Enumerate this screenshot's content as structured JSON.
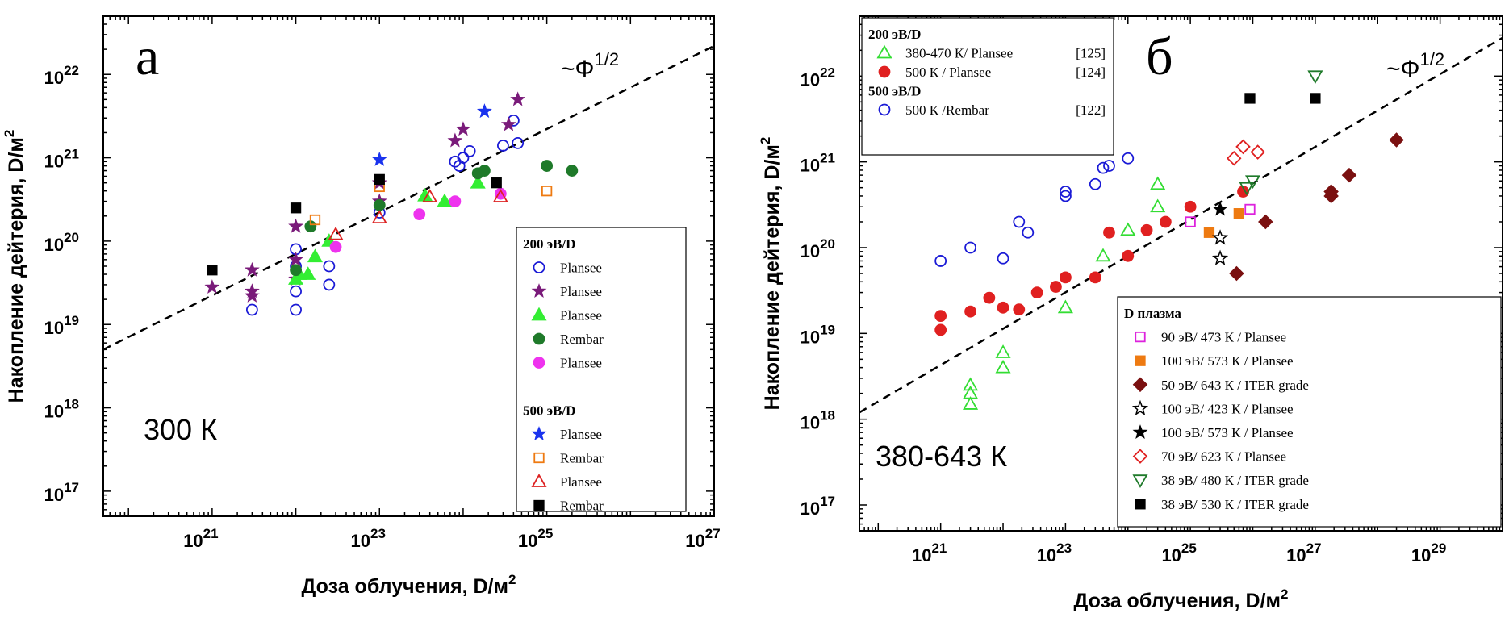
{
  "chart_data": [
    {
      "type": "scatter",
      "panel_label": "а",
      "temperature_label": "300 К",
      "trend_label": "~Φ",
      "trend_exponent": "1/2",
      "x_scale": "log",
      "y_scale": "log",
      "xlim": [
        5e+19,
        1e+27
      ],
      "ylim": [
        5e+16,
        5e+22
      ],
      "x_ticks": [
        1e+21,
        1e+23,
        1e+25,
        1e+27
      ],
      "x_tick_labels": [
        "10",
        "10",
        "10",
        "10"
      ],
      "x_tick_exponents": [
        "21",
        "23",
        "25",
        "27"
      ],
      "y_ticks": [
        1e+17,
        1e+18,
        1e+19,
        1e+20,
        1e+21,
        1e+22
      ],
      "y_tick_labels": [
        "10",
        "10",
        "10",
        "10",
        "10",
        "10"
      ],
      "y_tick_exponents": [
        "17",
        "18",
        "19",
        "20",
        "21",
        "22"
      ],
      "xlabel": "Доза облучения, D/м",
      "xlabel_sup": "2",
      "ylabel": "Накопление дейтерия, D/м",
      "ylabel_sup": "2",
      "trendline": [
        [
          5e+19,
          5e+18
        ],
        [
          1e+27,
          2.2e+22
        ]
      ],
      "legend_position": "bottom-right",
      "legend_groups": [
        {
          "title": "200 эВ/D",
          "series_indices": [
            0,
            1,
            2,
            3,
            4
          ]
        },
        {
          "title": "500 эВ/D",
          "series_indices": [
            5,
            6,
            7,
            8
          ]
        }
      ],
      "series": [
        {
          "name": "Plansee",
          "marker": "circle-open",
          "color": "#1a1ad6",
          "points": [
            [
              3e+21,
              1.5e+19
            ],
            [
              1e+22,
              1.5e+19
            ],
            [
              1e+22,
              2.5e+19
            ],
            [
              1e+22,
              5e+19
            ],
            [
              1e+22,
              8e+19
            ],
            [
              2.5e+22,
              5e+19
            ],
            [
              2.5e+22,
              3e+19
            ],
            [
              1e+23,
              2.2e+20
            ],
            [
              8e+23,
              9e+20
            ],
            [
              9e+23,
              8e+20
            ],
            [
              1e+24,
              1e+21
            ],
            [
              1.2e+24,
              1.2e+21
            ],
            [
              3e+24,
              1.4e+21
            ],
            [
              4e+24,
              2.8e+21
            ],
            [
              4.5e+24,
              1.5e+21
            ]
          ]
        },
        {
          "name": "Plansee",
          "marker": "star",
          "color": "#7a1b7a",
          "points": [
            [
              1e+21,
              2.8e+19
            ],
            [
              3e+21,
              4.5e+19
            ],
            [
              3e+21,
              2.5e+19
            ],
            [
              3e+21,
              2.2e+19
            ],
            [
              1e+22,
              3.5e+19
            ],
            [
              1e+22,
              6e+19
            ],
            [
              1e+22,
              1.5e+20
            ],
            [
              1e+23,
              3e+20
            ],
            [
              1e+23,
              5e+20
            ],
            [
              8e+23,
              1.6e+21
            ],
            [
              1e+24,
              2.2e+21
            ],
            [
              3.5e+24,
              2.5e+21
            ],
            [
              4.5e+24,
              5e+21
            ]
          ]
        },
        {
          "name": "Plansee",
          "marker": "triangle",
          "color": "#33ee33",
          "points": [
            [
              1e+22,
              3.5e+19
            ],
            [
              1.1e+22,
              4e+19
            ],
            [
              1.4e+22,
              4e+19
            ],
            [
              1.7e+22,
              6.5e+19
            ],
            [
              2.5e+22,
              1e+20
            ],
            [
              3.5e+23,
              3.5e+20
            ],
            [
              6e+23,
              3e+20
            ],
            [
              1.5e+24,
              5e+20
            ]
          ]
        },
        {
          "name": "Rembar",
          "marker": "circle",
          "color": "#1f7a2a",
          "points": [
            [
              1e+22,
              4.5e+19
            ],
            [
              1.5e+22,
              1.5e+20
            ],
            [
              1e+23,
              2.7e+20
            ],
            [
              1.5e+24,
              6.5e+20
            ],
            [
              1.8e+24,
              7e+20
            ],
            [
              1e+25,
              8e+20
            ],
            [
              2e+25,
              7e+20
            ]
          ]
        },
        {
          "name": "Plansee",
          "marker": "circle",
          "color": "#ee33ee",
          "points": [
            [
              3e+22,
              8.5e+19
            ],
            [
              3e+23,
              2.1e+20
            ],
            [
              8e+23,
              3e+20
            ],
            [
              2.8e+24,
              3.7e+20
            ]
          ]
        },
        {
          "name": "Plansee",
          "marker": "star",
          "color": "#1a33ee",
          "points": [
            [
              1e+23,
              9.5e+20
            ],
            [
              1.8e+24,
              3.6e+21
            ]
          ]
        },
        {
          "name": "Rembar",
          "marker": "square-open",
          "color": "#ee7a11",
          "points": [
            [
              1.7e+22,
              1.8e+20
            ],
            [
              1e+23,
              4.5e+20
            ],
            [
              1e+25,
              4e+20
            ]
          ]
        },
        {
          "name": "Plansee",
          "marker": "triangle-open",
          "color": "#dd2222",
          "points": [
            [
              3e+22,
              1.2e+20
            ],
            [
              1e+23,
              1.9e+20
            ],
            [
              4e+23,
              3.4e+20
            ],
            [
              2.8e+24,
              3.4e+20
            ]
          ]
        },
        {
          "name": "Rembar",
          "marker": "square",
          "color": "#000000",
          "points": [
            [
              1e+21,
              4.5e+19
            ],
            [
              1e+22,
              2.5e+20
            ],
            [
              1e+23,
              5.5e+20
            ],
            [
              2.5e+24,
              5e+20
            ]
          ]
        }
      ]
    },
    {
      "type": "scatter",
      "panel_label": "б",
      "temperature_label": "380-643 К",
      "trend_label": "~Φ",
      "trend_exponent": "1/2",
      "x_scale": "log",
      "y_scale": "log",
      "xlim": [
        5e+19,
        1e+30
      ],
      "ylim": [
        5e+16,
        5e+22
      ],
      "x_ticks": [
        1e+21,
        1e+23,
        1e+25,
        1e+27,
        1e+29
      ],
      "x_tick_labels": [
        "10",
        "10",
        "10",
        "10",
        "10"
      ],
      "x_tick_exponents": [
        "21",
        "23",
        "25",
        "27",
        "29"
      ],
      "y_ticks": [
        1e+17,
        1e+18,
        1e+19,
        1e+20,
        1e+21,
        1e+22
      ],
      "y_tick_labels": [
        "10",
        "10",
        "10",
        "10",
        "10",
        "10"
      ],
      "y_tick_exponents": [
        "17",
        "18",
        "19",
        "20",
        "21",
        "22"
      ],
      "xlabel": "Доза облучения, D/м",
      "xlabel_sup": "2",
      "ylabel": "Накопление дейтерия, D/м",
      "ylabel_sup": "2",
      "trendline": [
        [
          5e+19,
          1.2e+18
        ],
        [
          1e+30,
          2.8e+22
        ]
      ],
      "legend_positions": [
        "top-left",
        "bottom-right"
      ],
      "legend_groups": [
        {
          "box": 1,
          "title": "200 эВ/D",
          "series_indices": [
            0,
            1
          ]
        },
        {
          "box": 1,
          "title": "500 эВ/D",
          "series_indices": [
            2
          ]
        },
        {
          "box": 2,
          "title": "D плазма",
          "series_indices": [
            3,
            4,
            5,
            6,
            7,
            8,
            9,
            10
          ]
        }
      ],
      "series": [
        {
          "name": "380-470 К/ Plansee",
          "ref": "[125]",
          "marker": "triangle-open",
          "color": "#33dd33",
          "points": [
            [
              3e+21,
              1.5e+18
            ],
            [
              3e+21,
              2e+18
            ],
            [
              3e+21,
              2.5e+18
            ],
            [
              1e+22,
              4e+18
            ],
            [
              1e+22,
              6e+18
            ],
            [
              1e+23,
              2e+19
            ],
            [
              4e+23,
              8e+19
            ],
            [
              1e+24,
              1.6e+20
            ],
            [
              3e+24,
              3e+20
            ],
            [
              3e+24,
              5.5e+20
            ]
          ]
        },
        {
          "name": "500 К / Plansee",
          "ref": "[124]",
          "marker": "circle",
          "color": "#e02020",
          "points": [
            [
              1e+21,
              1.1e+19
            ],
            [
              1e+21,
              1.6e+19
            ],
            [
              3e+21,
              1.8e+19
            ],
            [
              6e+21,
              2.6e+19
            ],
            [
              1e+22,
              2e+19
            ],
            [
              1.8e+22,
              1.9e+19
            ],
            [
              3.5e+22,
              3e+19
            ],
            [
              7e+22,
              3.5e+19
            ],
            [
              1e+23,
              4.5e+19
            ],
            [
              3e+23,
              4.5e+19
            ],
            [
              5e+23,
              1.5e+20
            ],
            [
              1e+24,
              8e+19
            ],
            [
              2e+24,
              1.6e+20
            ],
            [
              4e+24,
              2e+20
            ],
            [
              1e+25,
              3e+20
            ],
            [
              7e+25,
              4.5e+20
            ]
          ]
        },
        {
          "name": "500 К /Rembar",
          "ref": "[122]",
          "marker": "circle-open",
          "color": "#1a1ad6",
          "points": [
            [
              1e+21,
              7e+19
            ],
            [
              3e+21,
              1e+20
            ],
            [
              1e+22,
              7.5e+19
            ],
            [
              1.8e+22,
              2e+20
            ],
            [
              2.5e+22,
              1.5e+20
            ],
            [
              1e+23,
              4e+20
            ],
            [
              1e+23,
              4.5e+20
            ],
            [
              3e+23,
              5.5e+20
            ],
            [
              4e+23,
              8.5e+20
            ],
            [
              5e+23,
              9e+20
            ],
            [
              1e+24,
              1.1e+21
            ]
          ]
        },
        {
          "name": "90 эВ/ 473 К / Plansee",
          "marker": "square-open",
          "color": "#dd22dd",
          "points": [
            [
              1e+25,
              2e+20
            ],
            [
              9e+25,
              2.8e+20
            ]
          ]
        },
        {
          "name": "100 эВ/ 573 К / Plansee",
          "marker": "square",
          "color": "#ee7a11",
          "points": [
            [
              2e+25,
              1.5e+20
            ],
            [
              6e+25,
              2.5e+20
            ]
          ]
        },
        {
          "name": "50 эВ/ 643 К / ITER grade",
          "marker": "diamond",
          "color": "#7a1010",
          "points": [
            [
              5.5e+25,
              5e+19
            ],
            [
              1.6e+26,
              2e+20
            ],
            [
              1.8e+27,
              4e+20
            ],
            [
              1.8e+27,
              4.5e+20
            ],
            [
              3.5e+27,
              7e+20
            ],
            [
              2e+28,
              1.8e+21
            ]
          ]
        },
        {
          "name": "100 эВ/ 423 К / Plansee",
          "marker": "star-open",
          "color": "#000000",
          "points": [
            [
              3e+25,
              1.3e+20
            ],
            [
              3e+25,
              7.5e+19
            ]
          ]
        },
        {
          "name": "100 эВ/ 573 К / Plansee",
          "marker": "star",
          "color": "#000000",
          "points": [
            [
              3e+25,
              2.8e+20
            ]
          ]
        },
        {
          "name": "70  эВ/ 623 К / Plansee",
          "marker": "diamond-open",
          "color": "#e02020",
          "points": [
            [
              5e+25,
              1.1e+21
            ],
            [
              7e+25,
              1.5e+21
            ],
            [
              1.2e+26,
              1.3e+21
            ]
          ]
        },
        {
          "name": "38  эВ/ 480 К / ITER grade",
          "marker": "triangle-down-open",
          "color": "#1f7a2a",
          "points": [
            [
              8e+25,
              5e+20
            ],
            [
              1e+26,
              6e+20
            ],
            [
              1e+27,
              1e+22
            ]
          ]
        },
        {
          "name": "38  эВ/ 530 К / ITER grade",
          "marker": "square",
          "color": "#000000",
          "points": [
            [
              9e+25,
              5.5e+21
            ],
            [
              1e+27,
              5.5e+21
            ]
          ]
        }
      ]
    }
  ]
}
